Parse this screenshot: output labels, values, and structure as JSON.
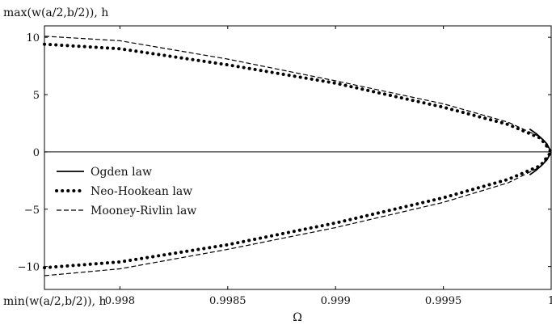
{
  "chart_data": {
    "type": "line",
    "title": "",
    "ylabel_top": "max(w(a/2,b/2)), h",
    "ylabel_bottom": "min(w(a/2,b/2)), h",
    "xlabel": "Ω",
    "xlim": [
      0.99765,
      1.0
    ],
    "ylim": [
      -12,
      11
    ],
    "xticks": [
      0.998,
      0.9985,
      0.999,
      0.9995,
      1.0
    ],
    "xtick_labels": [
      "0.998",
      "0.9985",
      "0.999",
      "0.9995",
      "1"
    ],
    "yticks": [
      -10,
      -5,
      0,
      5,
      10
    ],
    "ytick_labels": [
      "−10",
      "−5",
      "0",
      "5",
      "10"
    ],
    "grid": false,
    "legend": "center-left",
    "reference_line_y": 0,
    "series": [
      {
        "name": "Ogden law",
        "style": "solid",
        "upper": {
          "x": [
            0.9999,
            0.99993,
            0.99996,
            0.99998,
            0.99999,
            1.0
          ],
          "y": [
            2.0,
            1.6,
            1.1,
            0.7,
            0.35,
            0.0
          ]
        },
        "lower": {
          "x": [
            0.9999,
            0.99993,
            0.99996,
            0.99998,
            0.99999,
            1.0
          ],
          "y": [
            -2.0,
            -1.6,
            -1.1,
            -0.7,
            -0.35,
            0.0
          ]
        }
      },
      {
        "name": "Neo-Hookean law",
        "style": "dotted",
        "upper": {
          "x": [
            0.99765,
            0.998,
            0.9985,
            0.999,
            0.9995,
            0.9998,
            0.99995,
            1.0
          ],
          "y": [
            9.4,
            9.0,
            7.6,
            6.0,
            3.9,
            2.4,
            1.2,
            0.0
          ]
        },
        "lower": {
          "x": [
            0.99765,
            0.998,
            0.9985,
            0.999,
            0.9995,
            0.9998,
            0.99995,
            1.0
          ],
          "y": [
            -10.1,
            -9.6,
            -8.1,
            -6.2,
            -4.0,
            -2.4,
            -1.2,
            0.0
          ]
        }
      },
      {
        "name": "Mooney-Rivlin law",
        "style": "dashed",
        "upper": {
          "x": [
            0.99765,
            0.998,
            0.9985,
            0.999,
            0.9995,
            0.9998,
            0.99995,
            1.0
          ],
          "y": [
            10.1,
            9.7,
            8.1,
            6.2,
            4.2,
            2.6,
            1.3,
            0.0
          ]
        },
        "lower": {
          "x": [
            0.99765,
            0.998,
            0.9985,
            0.999,
            0.9995,
            0.9998,
            0.99995,
            1.0
          ],
          "y": [
            -10.8,
            -10.2,
            -8.5,
            -6.6,
            -4.4,
            -2.7,
            -1.3,
            0.0
          ]
        }
      }
    ]
  }
}
